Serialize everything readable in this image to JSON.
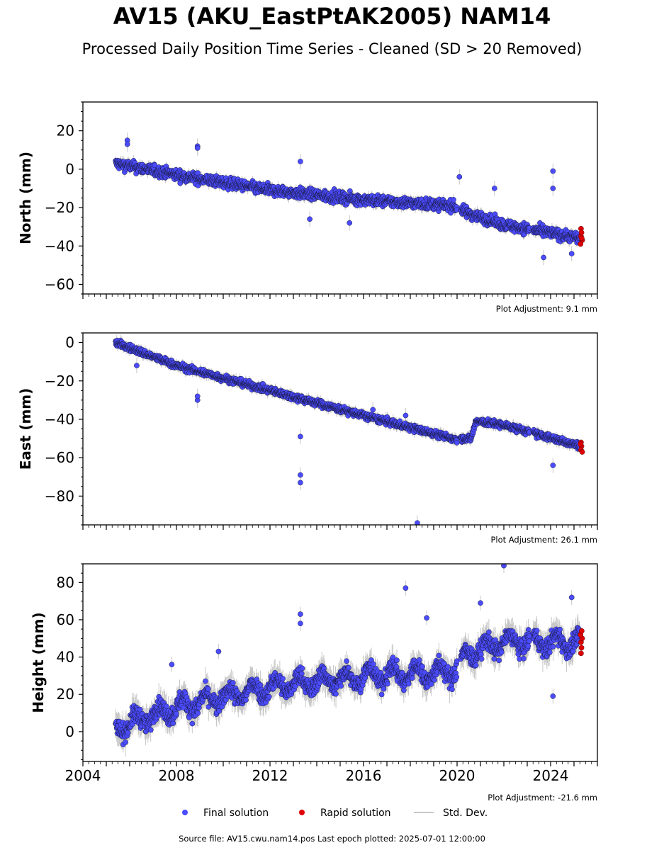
{
  "title": "AV15 (AKU_EastPtAK2005) NAM14",
  "subtitle": "Processed Daily Position Time Series - Cleaned (SD > 20 Removed)",
  "footer": "Source file: AV15.cwu.nam14.pos  Last epoch plotted: 2025-07-01 12:00:00",
  "legend": {
    "final": "Final solution",
    "rapid": "Rapid solution",
    "std": "Std. Dev."
  },
  "colors": {
    "final": "#4b4bff",
    "rapid": "#e00000",
    "std": "#b0b0b0"
  },
  "chart_data": [
    {
      "type": "scatter",
      "ylabel": "North (mm)",
      "adjustment": "Plot Adjustment: 9.1 mm",
      "xlim": [
        2004,
        2026
      ],
      "ylim": [
        -65,
        35
      ],
      "yticks": [
        20,
        0,
        -20,
        -40,
        -60
      ],
      "trend": [
        [
          2005.4,
          3
        ],
        [
          2008,
          -3
        ],
        [
          2012,
          -11
        ],
        [
          2016,
          -16
        ],
        [
          2019.8,
          -19
        ],
        [
          2020.5,
          -23
        ],
        [
          2022,
          -29
        ],
        [
          2025.3,
          -36
        ]
      ],
      "noise": 4,
      "outliers": [
        [
          2005.9,
          15
        ],
        [
          2005.9,
          13
        ],
        [
          2008.9,
          12
        ],
        [
          2008.9,
          11
        ],
        [
          2013.3,
          4
        ],
        [
          2020.1,
          -4
        ],
        [
          2024.1,
          -1
        ],
        [
          2024.1,
          -10
        ],
        [
          2021.6,
          -10
        ],
        [
          2023.7,
          -46
        ],
        [
          2013.7,
          -26
        ],
        [
          2015.4,
          -28
        ],
        [
          2024.9,
          -44
        ]
      ],
      "rapid": [
        [
          2025.3,
          -31
        ],
        [
          2025.32,
          -33
        ],
        [
          2025.3,
          -35
        ],
        [
          2025.35,
          -37
        ],
        [
          2025.28,
          -39
        ],
        [
          2025.33,
          -36
        ]
      ]
    },
    {
      "type": "scatter",
      "ylabel": "East (mm)",
      "adjustment": "Plot Adjustment: 26.1 mm",
      "xlim": [
        2004,
        2026
      ],
      "ylim": [
        -95,
        5
      ],
      "yticks": [
        0,
        -20,
        -40,
        -60,
        -80
      ],
      "trend": [
        [
          2005.4,
          0
        ],
        [
          2008,
          -12
        ],
        [
          2012,
          -25
        ],
        [
          2016,
          -38
        ],
        [
          2019.8,
          -50
        ],
        [
          2020.6,
          -50
        ],
        [
          2020.8,
          -41
        ],
        [
          2022,
          -43
        ],
        [
          2025.3,
          -54
        ]
      ],
      "noise": 2.5,
      "outliers": [
        [
          2013.3,
          -69
        ],
        [
          2013.3,
          -73
        ],
        [
          2018.3,
          -94
        ],
        [
          2013.3,
          -49
        ],
        [
          2024.1,
          -64
        ],
        [
          2008.9,
          -30
        ],
        [
          2008.9,
          -28
        ],
        [
          2017.8,
          -38
        ],
        [
          2016.4,
          -35
        ],
        [
          2006.3,
          -12
        ]
      ],
      "rapid": [
        [
          2025.3,
          -52
        ],
        [
          2025.32,
          -54
        ],
        [
          2025.3,
          -56
        ],
        [
          2025.35,
          -57
        ],
        [
          2025.28,
          -53
        ]
      ]
    },
    {
      "type": "scatter",
      "ylabel": "Height (mm)",
      "adjustment": "Plot Adjustment: -21.6 mm",
      "xlim": [
        2004,
        2026
      ],
      "ylim": [
        -16,
        90
      ],
      "yticks": [
        80,
        60,
        40,
        20,
        0
      ],
      "xticks": [
        "2004",
        "2008",
        "2012",
        "2016",
        "2020",
        "2024"
      ],
      "trend": [
        [
          2005.4,
          2
        ],
        [
          2008,
          13
        ],
        [
          2012,
          24
        ],
        [
          2016,
          30
        ],
        [
          2019.8,
          32
        ],
        [
          2020.5,
          42
        ],
        [
          2022,
          48
        ],
        [
          2025.3,
          48
        ]
      ],
      "noise": 7,
      "outliers": [
        [
          2013.3,
          63
        ],
        [
          2013.3,
          58
        ],
        [
          2017.8,
          77
        ],
        [
          2022.0,
          89
        ],
        [
          2018.7,
          61
        ],
        [
          2024.1,
          19
        ],
        [
          2007.8,
          36
        ],
        [
          2009.8,
          43
        ],
        [
          2021.0,
          69
        ],
        [
          2024.9,
          72
        ]
      ],
      "rapid": [
        [
          2025.3,
          42
        ],
        [
          2025.32,
          45
        ],
        [
          2025.3,
          48
        ],
        [
          2025.35,
          50
        ],
        [
          2025.28,
          52
        ],
        [
          2025.33,
          54
        ]
      ]
    }
  ]
}
